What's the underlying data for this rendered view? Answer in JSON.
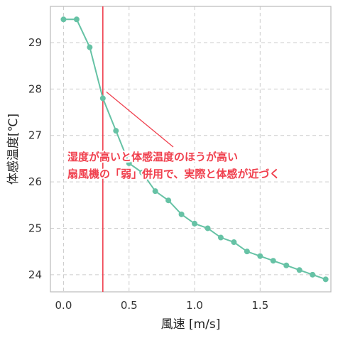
{
  "chart_data": {
    "type": "line",
    "xlabel": "風速 [m/s]",
    "ylabel": "体感温度[℃]",
    "xlim": [
      -0.1,
      2.04
    ],
    "ylim": [
      23.63,
      29.78
    ],
    "x_ticks": [
      0.0,
      0.5,
      1.0,
      1.5
    ],
    "x_tick_labels": [
      "0.0",
      "0.5",
      "1.0",
      "1.5"
    ],
    "y_ticks": [
      24,
      25,
      26,
      27,
      28,
      29
    ],
    "y_tick_labels": [
      "24",
      "25",
      "26",
      "27",
      "28",
      "29"
    ],
    "grid": true,
    "series": [
      {
        "x": [
          0.0,
          0.1,
          0.2,
          0.3,
          0.4,
          0.5,
          0.6,
          0.7,
          0.8,
          0.9,
          1.0,
          1.1,
          1.2,
          1.3,
          1.4,
          1.5,
          1.6,
          1.7,
          1.8,
          1.9,
          2.0
        ],
        "y": [
          29.5,
          29.5,
          28.9,
          27.8,
          27.1,
          26.4,
          26.2,
          25.8,
          25.6,
          25.3,
          25.1,
          25.0,
          24.8,
          24.7,
          24.5,
          24.4,
          24.3,
          24.2,
          24.1,
          24.0,
          23.9
        ]
      }
    ],
    "vline_x": 0.3,
    "annotation": {
      "lines": [
        "湿度が高いと体感温度のほうが高い",
        "扇風機の「弱」併用で、実際と体感が近づく"
      ],
      "points_to": [
        0.3,
        27.8
      ]
    }
  },
  "colors": {
    "series": "#66c2a5",
    "vline": "#f0404e",
    "annotation_text": "#f0404e",
    "grid": "#cccccc",
    "frame": "#bbbbbb"
  }
}
